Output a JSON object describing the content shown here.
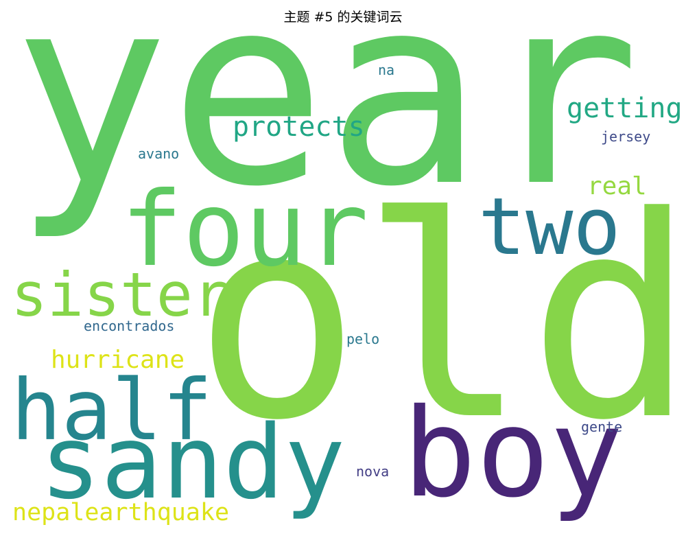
{
  "title": "主题 #5 的关键词云",
  "words": [
    {
      "text": "year",
      "color": "#5ec962"
    },
    {
      "text": "old",
      "color": "#86d549"
    },
    {
      "text": "four",
      "color": "#5ec962"
    },
    {
      "text": "two",
      "color": "#2a788e"
    },
    {
      "text": "sister",
      "color": "#86d549"
    },
    {
      "text": "half",
      "color": "#25858e"
    },
    {
      "text": "sandy",
      "color": "#25908c"
    },
    {
      "text": "boy",
      "color": "#482677"
    },
    {
      "text": "protects",
      "color": "#21a685"
    },
    {
      "text": "getting",
      "color": "#22a884"
    },
    {
      "text": "real",
      "color": "#95d840"
    },
    {
      "text": "hurricane",
      "color": "#dde318"
    },
    {
      "text": "nepalearthquake",
      "color": "#dde318"
    },
    {
      "text": "na",
      "color": "#2a788e"
    },
    {
      "text": "avano",
      "color": "#2a788e"
    },
    {
      "text": "jersey",
      "color": "#3e4a89"
    },
    {
      "text": "encontrados",
      "color": "#31688e"
    },
    {
      "text": "pelo",
      "color": "#2a788e"
    },
    {
      "text": "gente",
      "color": "#3e4a89"
    },
    {
      "text": "nova",
      "color": "#433e85"
    }
  ]
}
